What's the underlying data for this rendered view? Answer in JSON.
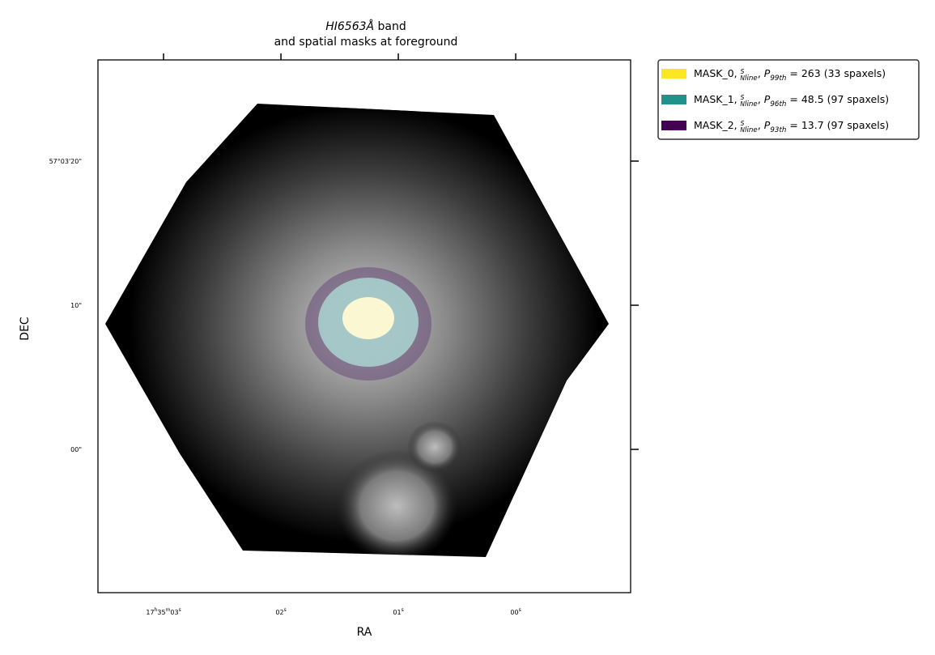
{
  "chart_data": {
    "type": "image",
    "title": [
      [
        {
          "text": "HI6563Å",
          "style": "italic"
        },
        {
          "text": " band",
          "style": "plain"
        }
      ],
      [
        {
          "text": "and spatial masks at foreground",
          "style": "plain"
        }
      ]
    ],
    "xlabel": "RA",
    "ylabel": "DEC",
    "xlim": [
      3.559,
      -0.979
    ],
    "ylim": [
      -9.94,
      27.02
    ],
    "xticks": [
      {
        "value": 3,
        "label": [
          {
            "text": "17",
            "style": "plain"
          },
          {
            "text": "h",
            "style": "sup"
          },
          {
            "text": "35",
            "style": "plain"
          },
          {
            "text": "m",
            "style": "sup"
          },
          {
            "text": "03",
            "style": "plain"
          },
          {
            "text": "s",
            "style": "sup"
          }
        ]
      },
      {
        "value": 2,
        "label": [
          {
            "text": "02",
            "style": "plain"
          },
          {
            "text": "s",
            "style": "sup"
          }
        ]
      },
      {
        "value": 1,
        "label": [
          {
            "text": "01",
            "style": "plain"
          },
          {
            "text": "s",
            "style": "sup"
          }
        ]
      },
      {
        "value": 0,
        "label": [
          {
            "text": "00",
            "style": "plain"
          },
          {
            "text": "s",
            "style": "sup"
          }
        ]
      }
    ],
    "yticks": [
      {
        "value": 20,
        "label": [
          {
            "text": "57°03'20\"",
            "style": "plain"
          }
        ]
      },
      {
        "value": 10,
        "label": [
          {
            "text": "10\"",
            "style": "plain"
          }
        ]
      },
      {
        "value": 0,
        "label": [
          {
            "text": "00\"",
            "style": "plain"
          }
        ]
      }
    ],
    "legend": "upper left outside",
    "series": [
      {
        "color": "#fde725",
        "name": [
          {
            "text": "MASK_0, ",
            "style": "plain"
          },
          {
            "text": "S",
            "style": "num"
          },
          {
            "text": "N",
            "style": "den"
          },
          {
            "text": "line",
            "style": "sub"
          },
          {
            "text": ", ",
            "style": "plain"
          },
          {
            "text": "P",
            "style": "italic"
          },
          {
            "text": "99th",
            "style": "sub"
          },
          {
            "text": " = 263 (33 spaxels)",
            "style": "plain"
          }
        ]
      },
      {
        "color": "#21918c",
        "name": [
          {
            "text": "MASK_1, ",
            "style": "plain"
          },
          {
            "text": "S",
            "style": "num"
          },
          {
            "text": "N",
            "style": "den"
          },
          {
            "text": "line",
            "style": "sub"
          },
          {
            "text": ", ",
            "style": "plain"
          },
          {
            "text": "P",
            "style": "italic"
          },
          {
            "text": "96th",
            "style": "sub"
          },
          {
            "text": " = 48.5 (97 spaxels)",
            "style": "plain"
          }
        ]
      },
      {
        "color": "#440154",
        "name": [
          {
            "text": "MASK_2, ",
            "style": "plain"
          },
          {
            "text": "S",
            "style": "num"
          },
          {
            "text": "N",
            "style": "den"
          },
          {
            "text": "line",
            "style": "sub"
          },
          {
            "text": ", ",
            "style": "plain"
          },
          {
            "text": "P",
            "style": "italic"
          },
          {
            "text": "93th",
            "style": "sub"
          },
          {
            "text": " = 13.7 (97 spaxels)",
            "style": "plain"
          }
        ]
      }
    ]
  }
}
